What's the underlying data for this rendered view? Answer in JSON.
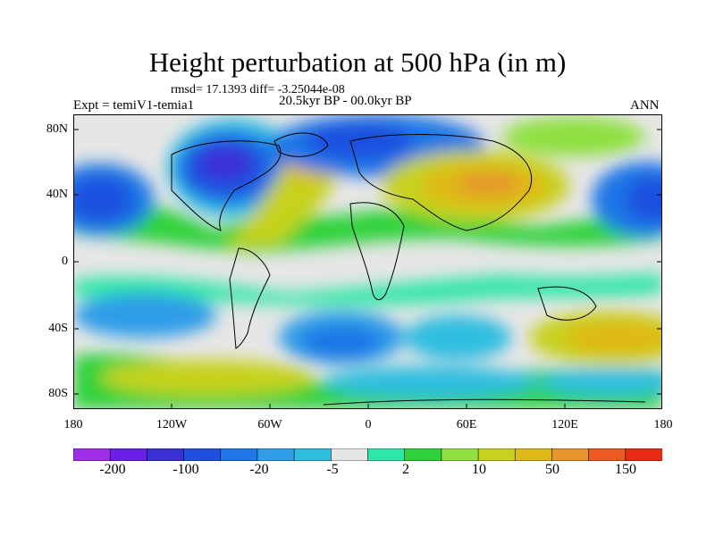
{
  "title": "Height perturbation at 500 hPa (in m)",
  "stats_line": "rmsd= 17.1393 diff= -3.25044e-08",
  "left_label": "Expt = temiV1-temia1",
  "center_label": "20.5kyr BP - 00.0kyr BP",
  "right_label": "ANN",
  "map": {
    "lat_ticks": [
      "80N",
      "40N",
      "0",
      "40S",
      "80S"
    ],
    "lon_ticks": [
      "180",
      "120W",
      "60W",
      "0",
      "60E",
      "120E",
      "180"
    ],
    "land_outline_color": "#000000",
    "background_color": "#e6e6e6"
  },
  "colorbar": {
    "colors": [
      "#9f2ee6",
      "#6b1fe8",
      "#3b2fd6",
      "#1f4fe0",
      "#1f76e6",
      "#2f9de8",
      "#2fbde0",
      "#e6e6e6",
      "#2ee6a6",
      "#2fd23a",
      "#8ee040",
      "#c6d21e",
      "#e0b818",
      "#e6952a",
      "#ec5a22",
      "#e62a14"
    ],
    "labels": [
      "-200",
      "-100",
      "-20",
      "-5",
      "2",
      "10",
      "50",
      "150"
    ]
  }
}
